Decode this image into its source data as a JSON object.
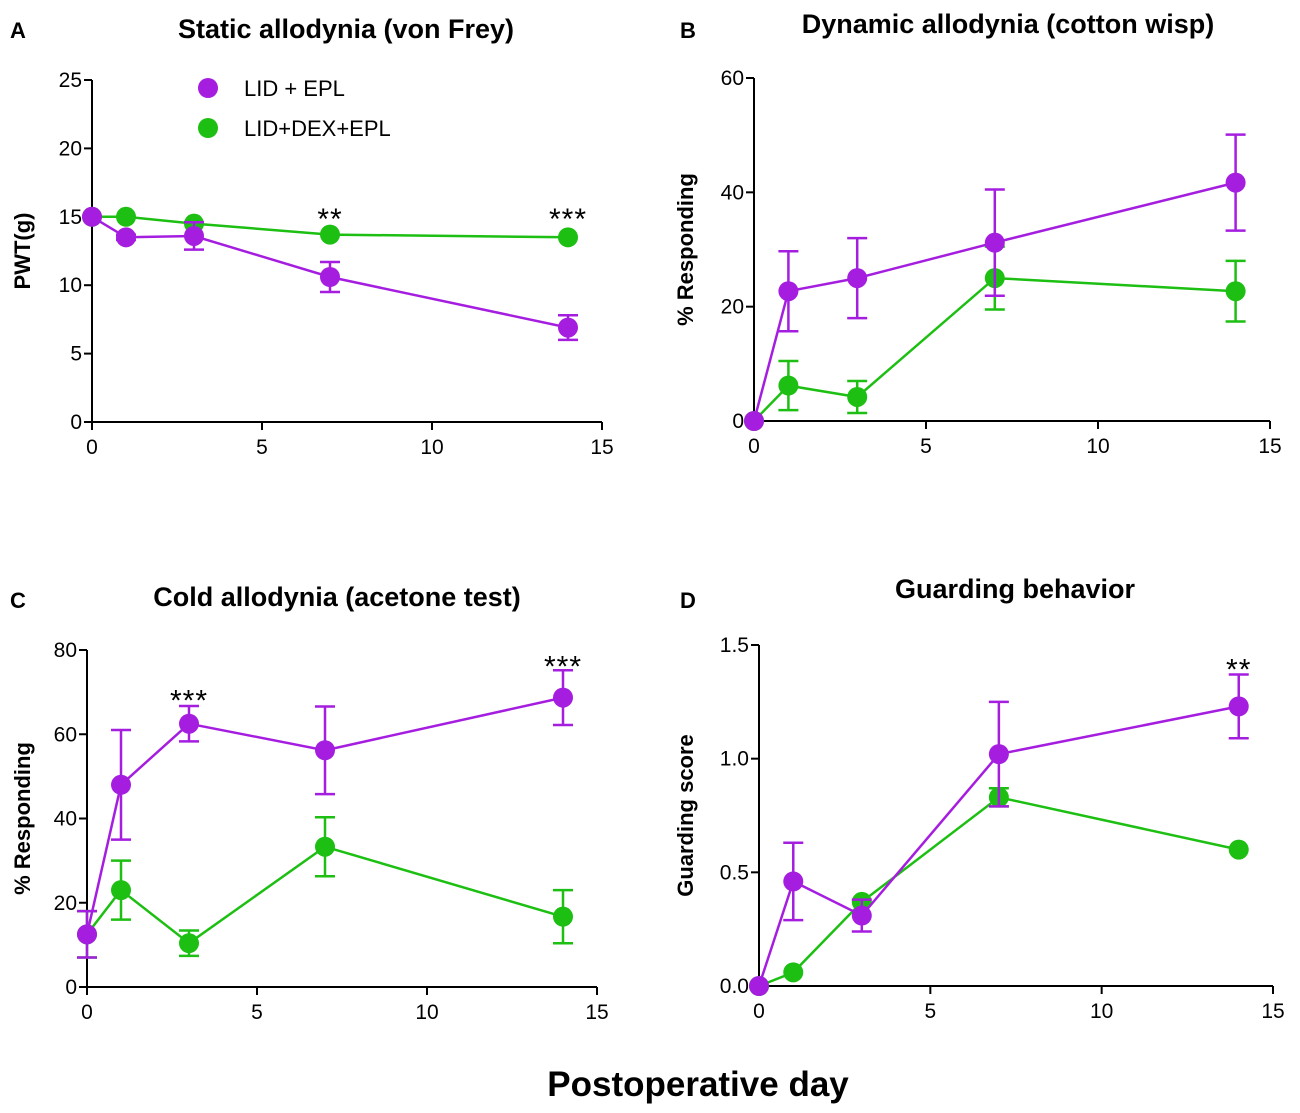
{
  "figure": {
    "shared_xlabel": "Postoperative day",
    "colors": {
      "LID + EPL": "#a51ee0",
      "LID+DEX+EPL": "#1cbf12"
    },
    "legend_entries": [
      "LID + EPL",
      "LID+DEX+EPL"
    ]
  },
  "chart_data": [
    {
      "id": "A",
      "letter": "A",
      "type": "line",
      "title": "Static allodynia (von Frey)",
      "xlabel": "",
      "ylabel": "PWT(g)",
      "xlim": [
        0,
        15
      ],
      "ylim": [
        0,
        25
      ],
      "xticks": [
        0,
        5,
        10,
        15
      ],
      "yticks": [
        0,
        5,
        10,
        15,
        20,
        25
      ],
      "x": [
        0,
        1,
        3,
        7,
        14
      ],
      "series": [
        {
          "name": "LID + EPL",
          "color": "#a51ee0",
          "values": [
            15,
            13.5,
            13.6,
            10.6,
            6.9
          ],
          "err": [
            0,
            0.2,
            1.0,
            1.1,
            0.9
          ]
        },
        {
          "name": "LID+DEX+EPL",
          "color": "#1cbf12",
          "values": [
            15,
            15,
            14.5,
            13.7,
            13.5
          ],
          "err": [
            0,
            0,
            0,
            0,
            0
          ]
        }
      ],
      "annotations": [
        {
          "x": 7,
          "y": 15.0,
          "text": "**"
        },
        {
          "x": 14,
          "y": 15.0,
          "text": "***"
        }
      ],
      "legend": "top-center"
    },
    {
      "id": "B",
      "letter": "B",
      "type": "line",
      "title": "Dynamic allodynia (cotton wisp)",
      "xlabel": "",
      "ylabel": "% Responding",
      "xlim": [
        0,
        15
      ],
      "ylim": [
        0,
        60
      ],
      "xticks": [
        0,
        5,
        10,
        15
      ],
      "yticks": [
        0,
        20,
        40,
        60
      ],
      "x": [
        0,
        1,
        3,
        7,
        14
      ],
      "series": [
        {
          "name": "LID + EPL",
          "color": "#a51ee0",
          "values": [
            0,
            22.7,
            25,
            31.2,
            41.7
          ],
          "err": [
            0,
            7,
            7,
            9.3,
            8.4
          ]
        },
        {
          "name": "LID+DEX+EPL",
          "color": "#1cbf12",
          "values": [
            0,
            6.2,
            4.2,
            25,
            22.7
          ],
          "err": [
            0,
            4.3,
            2.8,
            5.5,
            5.3
          ]
        }
      ],
      "annotations": []
    },
    {
      "id": "C",
      "letter": "C",
      "type": "line",
      "title": "Cold allodynia (acetone test)",
      "xlabel": "",
      "ylabel": "% Responding",
      "xlim": [
        0,
        15
      ],
      "ylim": [
        0,
        80
      ],
      "xticks": [
        0,
        5,
        10,
        15
      ],
      "yticks": [
        0,
        20,
        40,
        60,
        80
      ],
      "x": [
        0,
        1,
        3,
        7,
        14
      ],
      "series": [
        {
          "name": "LID + EPL",
          "color": "#a51ee0",
          "values": [
            12.5,
            48,
            62.5,
            56.2,
            68.7
          ],
          "err": [
            5.5,
            13,
            4.2,
            10.4,
            6.5
          ]
        },
        {
          "name": "LID+DEX+EPL",
          "color": "#1cbf12",
          "values": [
            12.5,
            23,
            10.4,
            33.3,
            16.7
          ],
          "err": [
            5.5,
            7,
            3,
            7,
            6.3
          ]
        }
      ],
      "annotations": [
        {
          "x": 3,
          "y": 68.5,
          "text": "***"
        },
        {
          "x": 14,
          "y": 76.5,
          "text": "***"
        }
      ]
    },
    {
      "id": "D",
      "letter": "D",
      "type": "line",
      "title": "Guarding behavior",
      "xlabel": "",
      "ylabel": "Guarding score",
      "xlim": [
        0,
        15
      ],
      "ylim": [
        0,
        1.5
      ],
      "xticks": [
        0,
        5,
        10,
        15
      ],
      "yticks": [
        0.0,
        0.5,
        1.0,
        1.5
      ],
      "ytick_labels": [
        "0.0",
        "0.5",
        "1.0",
        "1.5"
      ],
      "x": [
        0,
        1,
        3,
        7,
        14
      ],
      "series": [
        {
          "name": "LID + EPL",
          "color": "#a51ee0",
          "values": [
            0,
            0.46,
            0.31,
            1.02,
            1.23
          ],
          "err": [
            0,
            0.17,
            0.07,
            0.23,
            0.14
          ]
        },
        {
          "name": "LID+DEX+EPL",
          "color": "#1cbf12",
          "values": [
            0,
            0.06,
            0.37,
            0.83,
            0.6
          ],
          "err": [
            0,
            0,
            0,
            0.04,
            0
          ]
        }
      ],
      "annotations": [
        {
          "x": 14,
          "y": 1.4,
          "text": "**"
        }
      ]
    }
  ]
}
